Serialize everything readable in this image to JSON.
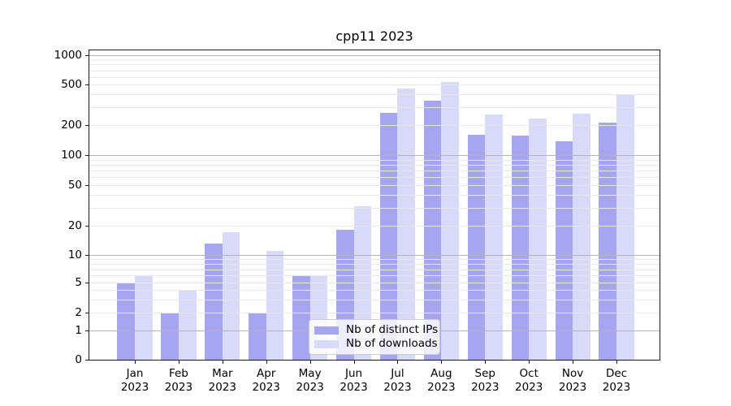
{
  "chart_data": {
    "type": "bar",
    "title": "cpp11 2023",
    "categories": [
      "Jan",
      "Feb",
      "Mar",
      "Apr",
      "May",
      "Jun",
      "Jul",
      "Aug",
      "Sep",
      "Oct",
      "Nov",
      "Dec"
    ],
    "x_tick_line2": "2023",
    "series": [
      {
        "name": "Nb of distinct IPs",
        "color": "#a6a6f0",
        "values": [
          5,
          2,
          13,
          2,
          6,
          18,
          265,
          345,
          160,
          158,
          138,
          210
        ]
      },
      {
        "name": "Nb of downloads",
        "color": "#d9d9f8",
        "values": [
          6,
          4,
          17,
          11,
          6,
          31,
          460,
          530,
          255,
          230,
          257,
          400
        ]
      }
    ],
    "y_ticks": [
      0,
      1,
      2,
      5,
      10,
      20,
      50,
      100,
      200,
      500,
      1000
    ],
    "y_scale": "log-like above 1, linear 0-1 (symlog)",
    "ylim": [
      0,
      1140
    ],
    "grid": true,
    "legend_position": "lower center",
    "colors": {
      "axis": "#1a1a1a",
      "grid_minor": "#e7e7e7",
      "grid_major": "#b3b3b3",
      "background": "#ffffff"
    }
  }
}
